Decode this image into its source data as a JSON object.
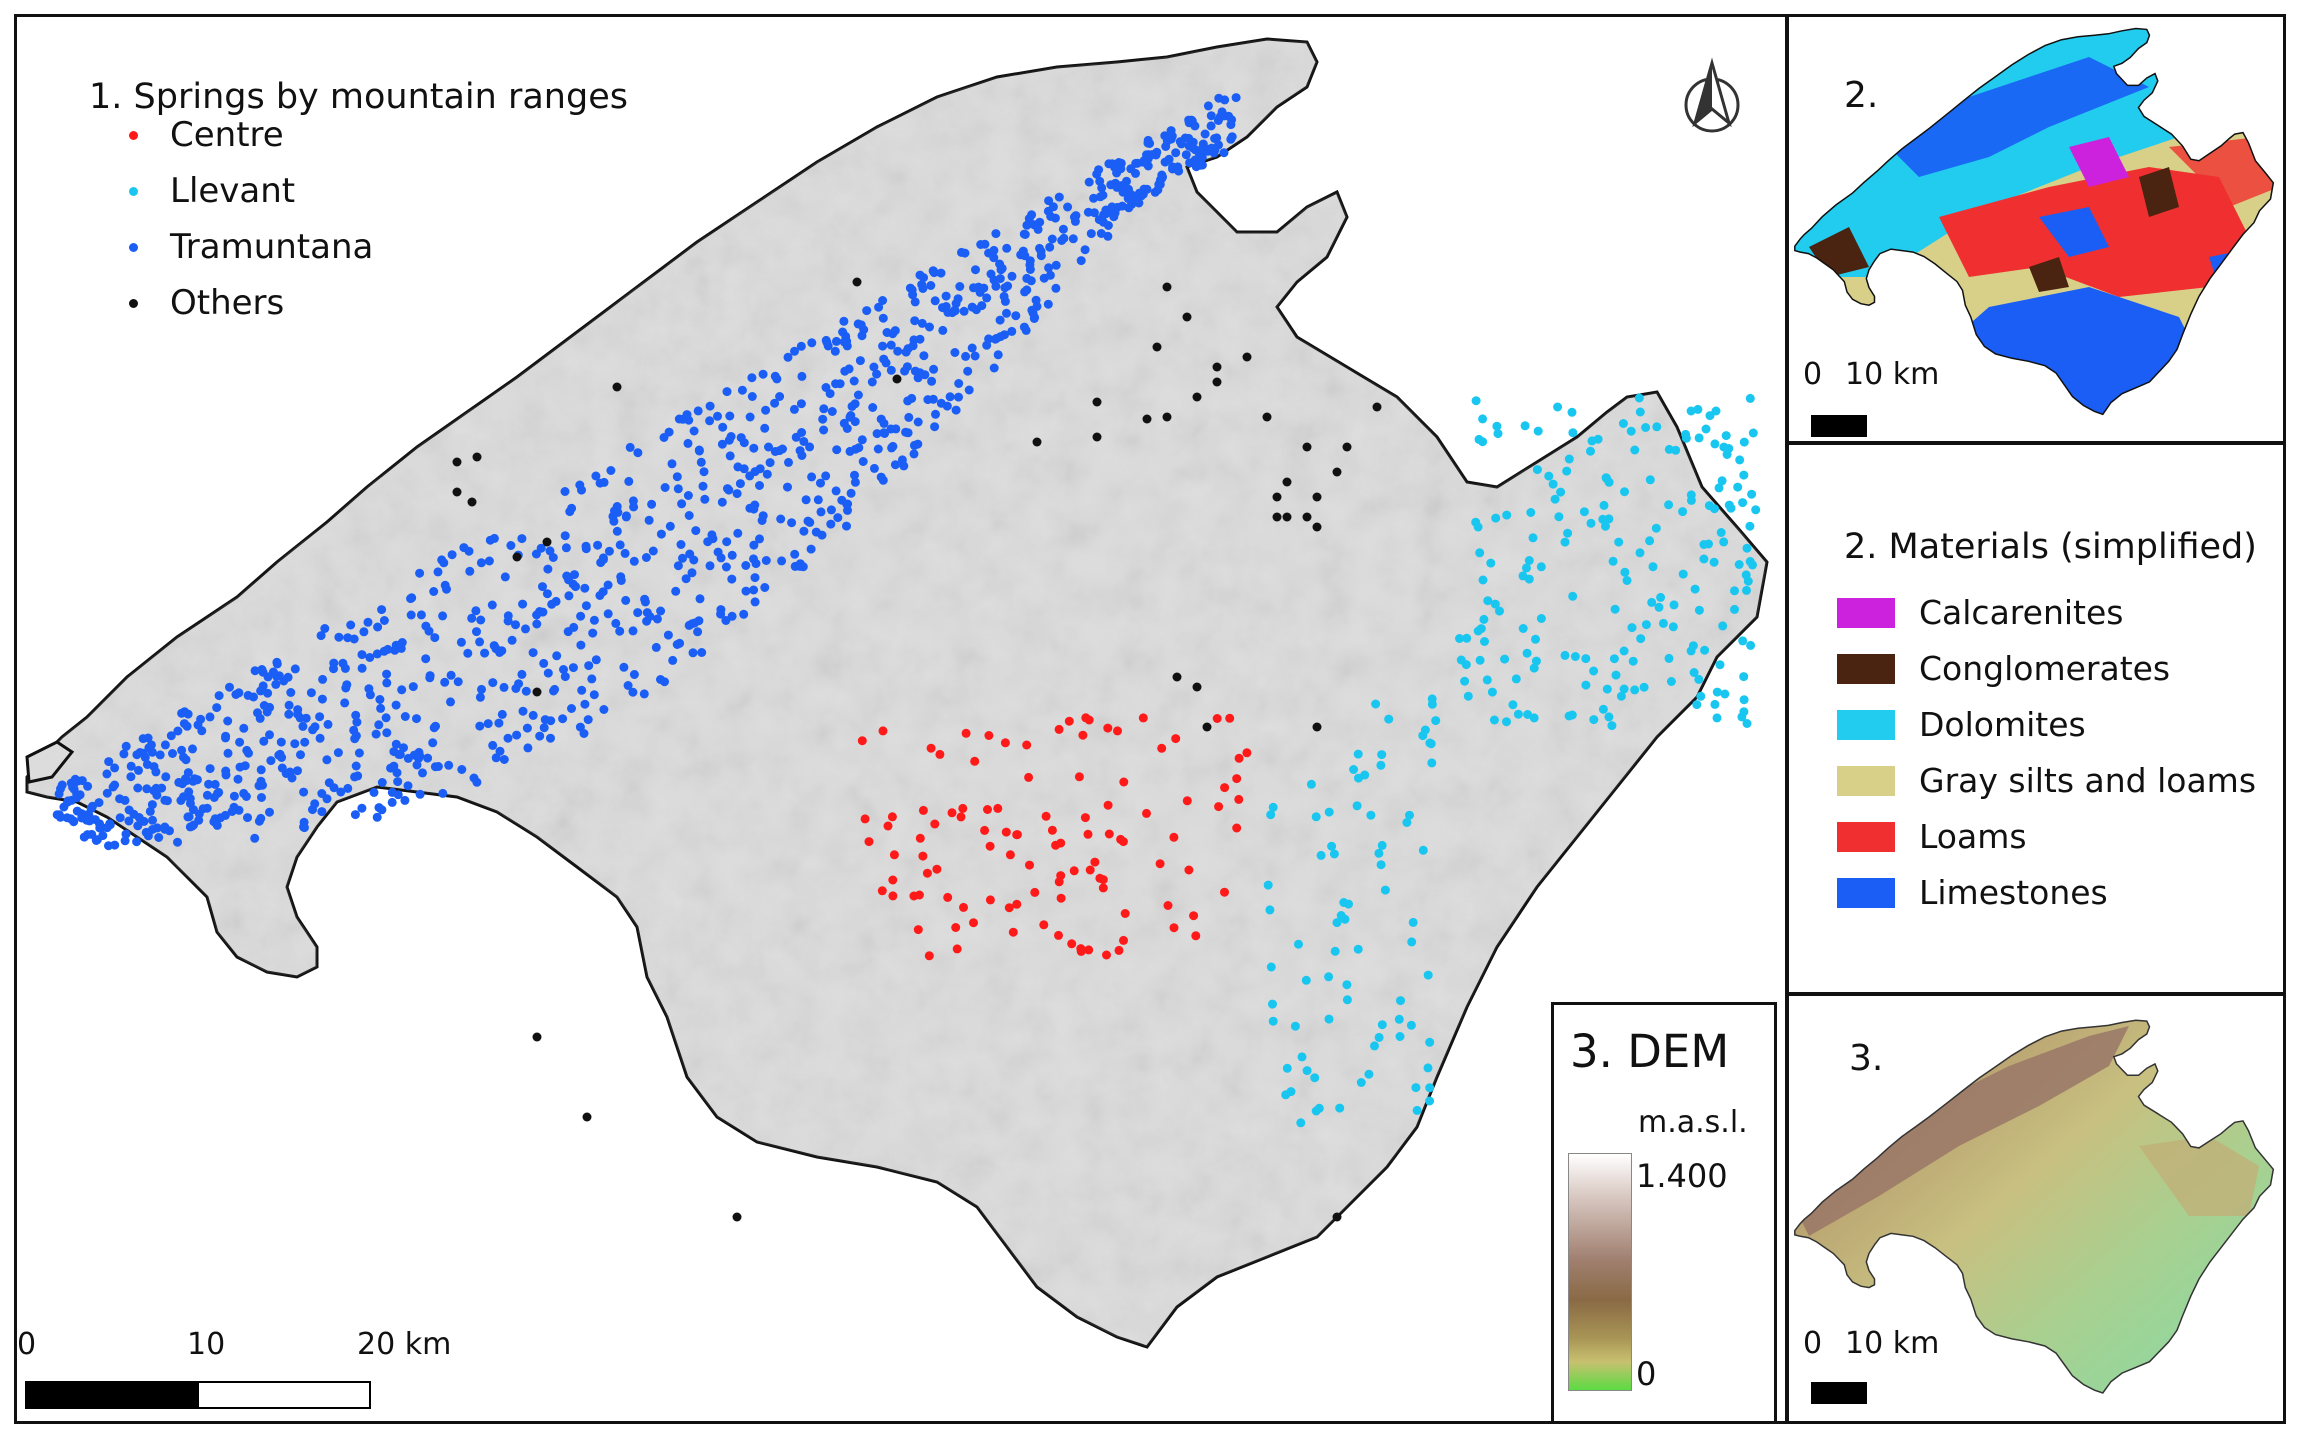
{
  "main_map": {
    "legend": {
      "title": "1.  Springs by mountain ranges",
      "items": [
        {
          "label": "Centre",
          "color": "#ff1a1a"
        },
        {
          "label": "Llevant",
          "color": "#19c6f0"
        },
        {
          "label": "Tramuntana",
          "color": "#1a5ef5"
        },
        {
          "label": "Others",
          "color": "#111111"
        }
      ]
    },
    "north_arrow": "north-arrow-icon",
    "scale_bar": {
      "labels": [
        "0",
        "10",
        "20 km"
      ]
    },
    "land_color": "#dcdcdc"
  },
  "inset_geology": {
    "number": "2.",
    "scale": {
      "labels": [
        "0",
        "10 km"
      ]
    }
  },
  "materials_legend": {
    "title": "2. Materials (simplified)",
    "items": [
      {
        "label": "Calcarenites",
        "color": "#cc22dd"
      },
      {
        "label": "Conglomerates",
        "color": "#4a2410"
      },
      {
        "label": "Dolomites",
        "color": "#22ccee"
      },
      {
        "label": "Gray silts and loams",
        "color": "#d8d088"
      },
      {
        "label": "Loams",
        "color": "#f03030"
      },
      {
        "label": "Limestones",
        "color": "#1a5ef5"
      }
    ]
  },
  "dem_legend": {
    "title": "3. DEM",
    "unit": "m.a.s.l.",
    "max": "1.400",
    "min": "0"
  },
  "inset_dem": {
    "number": "3.",
    "scale": {
      "labels": [
        "0",
        "10 km"
      ]
    }
  }
}
